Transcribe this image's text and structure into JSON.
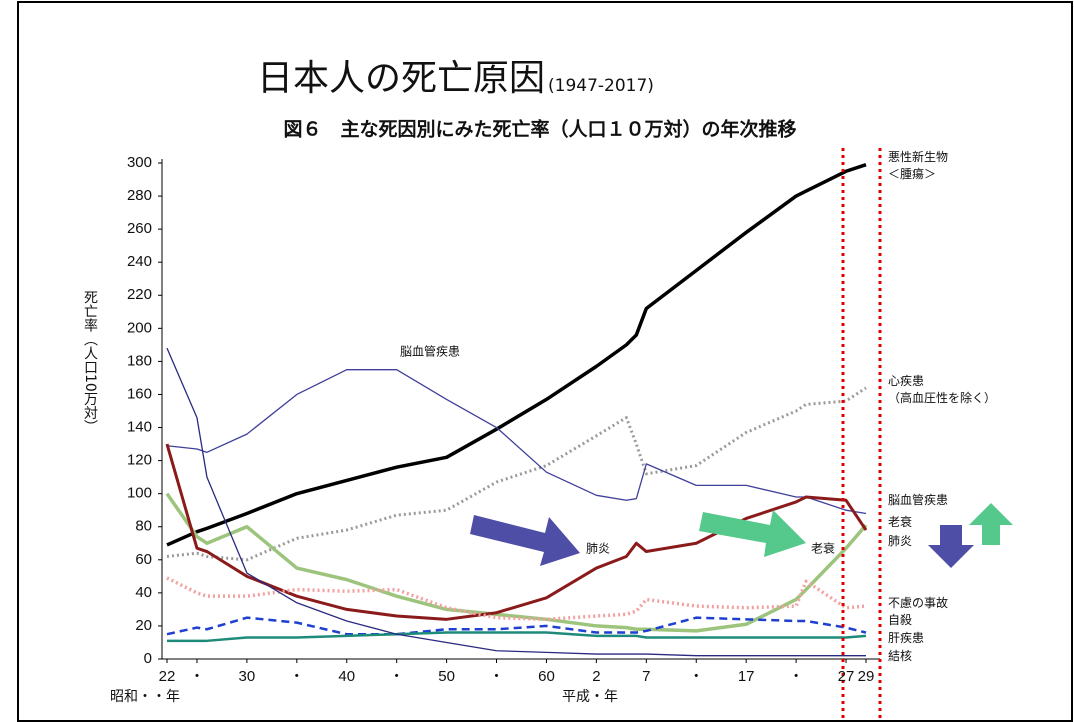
{
  "chart_data": {
    "type": "line",
    "title": "日本人の死亡原因",
    "title_years": "(1947-2017)",
    "subtitle": "図６　主な死因別にみた死亡率（人口１０万対）の年次推移",
    "ylabel": "死亡率（人口10万対）",
    "era_labels": [
      "昭和・・年",
      "平成・年"
    ],
    "annotations": [
      "脳血管疾患",
      "肺炎",
      "老衰"
    ],
    "x": [
      1947,
      1950,
      1951,
      1955,
      1960,
      1965,
      1970,
      1975,
      1980,
      1985,
      1990,
      1993,
      1994,
      1995,
      2000,
      2005,
      2010,
      2011,
      2015,
      2017
    ],
    "xlim": [
      1947,
      2017
    ],
    "xticks": [
      {
        "value": 1947,
        "label": "22"
      },
      {
        "value": 1950,
        "label": "・"
      },
      {
        "value": 1955,
        "label": "30"
      },
      {
        "value": 1960,
        "label": "・"
      },
      {
        "value": 1965,
        "label": "40"
      },
      {
        "value": 1970,
        "label": "・"
      },
      {
        "value": 1975,
        "label": "50"
      },
      {
        "value": 1980,
        "label": "・"
      },
      {
        "value": 1985,
        "label": "60"
      },
      {
        "value": 1990,
        "label": "2"
      },
      {
        "value": 1995,
        "label": "7"
      },
      {
        "value": 2000,
        "label": "・"
      },
      {
        "value": 2005,
        "label": "17"
      },
      {
        "value": 2010,
        "label": "・"
      },
      {
        "value": 2015,
        "label": "27"
      },
      {
        "value": 2017,
        "label": "29"
      }
    ],
    "ylim": [
      0,
      300
    ],
    "yticks": [
      0,
      20,
      40,
      60,
      80,
      100,
      120,
      140,
      160,
      180,
      200,
      220,
      240,
      260,
      280,
      300
    ],
    "series": [
      {
        "name": "悪性新生物\n＜腫瘍＞",
        "color": "#000000",
        "width": 3.5,
        "style": "solid",
        "values": [
          69,
          77,
          79,
          88,
          100,
          108,
          116,
          122,
          139,
          157,
          177,
          190,
          196,
          212,
          235,
          258,
          280,
          283,
          295,
          299
        ]
      },
      {
        "name": "心疾患\n（高血圧性を除く）",
        "color": "#9a9a9a",
        "width": 3,
        "style": "dotted",
        "values": [
          62,
          64,
          62,
          60,
          73,
          78,
          87,
          90,
          107,
          117,
          135,
          146,
          130,
          112,
          117,
          137,
          150,
          154,
          156,
          164
        ]
      },
      {
        "name": "脳血管疾患",
        "color": "#3f3f9c",
        "width": 1.3,
        "style": "solid",
        "values": [
          129,
          127,
          125,
          136,
          160,
          175,
          175,
          157,
          140,
          113,
          99,
          96,
          97,
          118,
          105,
          105,
          98,
          98,
          90,
          88
        ]
      },
      {
        "name": "老衰",
        "color": "#9cc47c",
        "width": 3.5,
        "style": "solid",
        "values": [
          100,
          74,
          70,
          80,
          55,
          48,
          38,
          30,
          27,
          24,
          20,
          19,
          18,
          18,
          17,
          21,
          36,
          42,
          67,
          81
        ]
      },
      {
        "name": "肺炎",
        "color": "#8b1a1a",
        "width": 3,
        "style": "solid",
        "values": [
          130,
          67,
          65,
          50,
          38,
          30,
          26,
          24,
          28,
          37,
          55,
          62,
          70,
          65,
          70,
          85,
          95,
          98,
          96,
          78
        ]
      },
      {
        "name": "不慮の事故",
        "color": "#f2a0a0",
        "width": 3.5,
        "style": "dotted",
        "values": [
          49,
          40,
          38,
          38,
          42,
          41,
          42,
          31,
          25,
          24,
          26,
          27,
          29,
          36,
          32,
          31,
          32,
          47,
          31,
          32
        ]
      },
      {
        "name": "自殺",
        "color": "#1f3fd0",
        "width": 2.5,
        "style": "dashed",
        "values": [
          15,
          19,
          18,
          25,
          22,
          15,
          15,
          18,
          18,
          20,
          16,
          16,
          16,
          17,
          25,
          24,
          23,
          23,
          19,
          16
        ]
      },
      {
        "name": "肝疾患",
        "color": "#1e8a7a",
        "width": 2.5,
        "style": "solid",
        "values": [
          11,
          11,
          11,
          13,
          13,
          14,
          15,
          16,
          16,
          16,
          14,
          14,
          14,
          13,
          13,
          13,
          13,
          13,
          13,
          14
        ]
      },
      {
        "name": "結核",
        "color": "#2a2a80",
        "width": 1.3,
        "style": "solid",
        "values": [
          188,
          146,
          110,
          52,
          34,
          23,
          15,
          10,
          5,
          4,
          3,
          3,
          3,
          3,
          2,
          2,
          2,
          2,
          2,
          2
        ]
      }
    ]
  }
}
